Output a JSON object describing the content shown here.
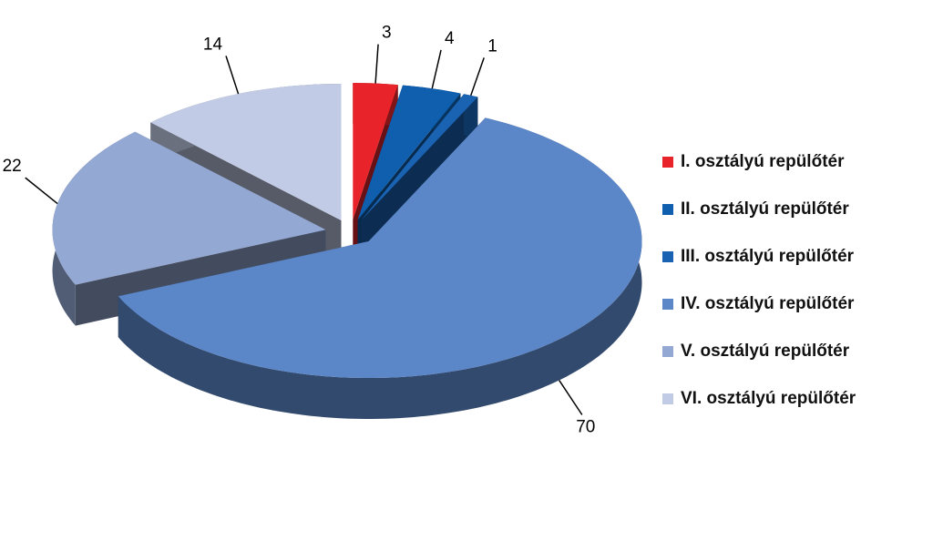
{
  "chart_data": {
    "type": "pie",
    "categories": [
      "I. osztályú repülőtér",
      "II. osztályú repülőtér",
      "III. osztályú repülőtér",
      "IV. osztályú repülőtér",
      "V. osztályú repülőtér",
      "VI. osztályú repülőtér"
    ],
    "values": [
      3,
      4,
      1,
      70,
      22,
      14
    ],
    "colors": [
      "#e8242a",
      "#0f5fae",
      "#1a63b3",
      "#5b86c8",
      "#94a8d4",
      "#c2cbe5"
    ],
    "legend": "right"
  }
}
